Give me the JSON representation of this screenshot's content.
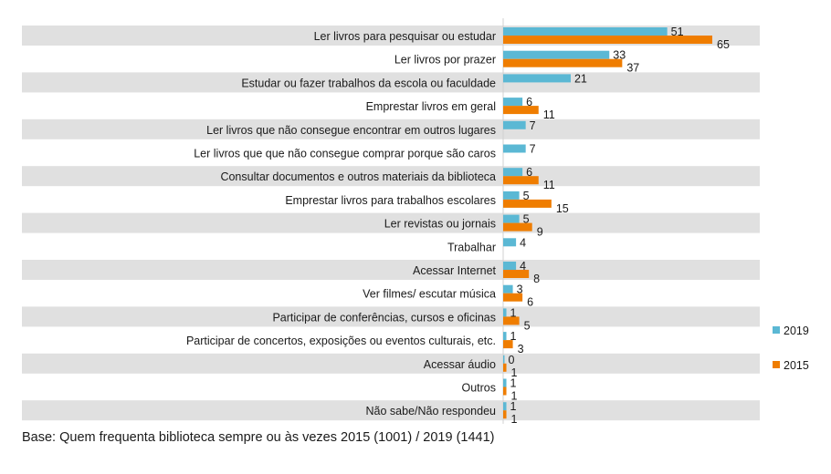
{
  "chart_data": {
    "type": "bar",
    "orientation": "horizontal",
    "title": "",
    "xlabel": "",
    "ylabel": "",
    "xlim": [
      0,
      65
    ],
    "grid": false,
    "legend_position": "right",
    "categories": [
      "Ler livros para pesquisar ou estudar",
      "Ler livros por prazer",
      "Estudar ou fazer trabalhos da escola ou faculdade",
      "Emprestar livros em geral",
      "Ler livros que não consegue encontrar em outros lugares",
      "Ler livros que que não consegue comprar porque são caros",
      "Consultar documentos e outros materiais da biblioteca",
      "Emprestar livros para trabalhos escolares",
      "Ler revistas ou jornais",
      "Trabalhar",
      "Acessar Internet",
      "Ver filmes/ escutar música",
      "Participar de conferências, cursos e oficinas",
      "Participar de concertos, exposições ou eventos culturais, etc.",
      "Acessar áudio",
      "Outros",
      "Não sabe/Não respondeu"
    ],
    "series": [
      {
        "name": "2019",
        "color": "#5bb8d4",
        "values": [
          51,
          33,
          21,
          6,
          7,
          7,
          6,
          5,
          5,
          4,
          4,
          3,
          1,
          1,
          0,
          1,
          1
        ]
      },
      {
        "name": "2015",
        "color": "#ef7d00",
        "values": [
          65,
          37,
          null,
          11,
          null,
          null,
          11,
          15,
          9,
          null,
          8,
          6,
          5,
          3,
          1,
          1,
          1
        ]
      }
    ],
    "legend": [
      "2019",
      "2015"
    ],
    "band_color": "#e0e0e0"
  },
  "footnote": "Base: Quem frequenta biblioteca sempre ou às vezes 2015 (1001) / 2019 (1441)"
}
